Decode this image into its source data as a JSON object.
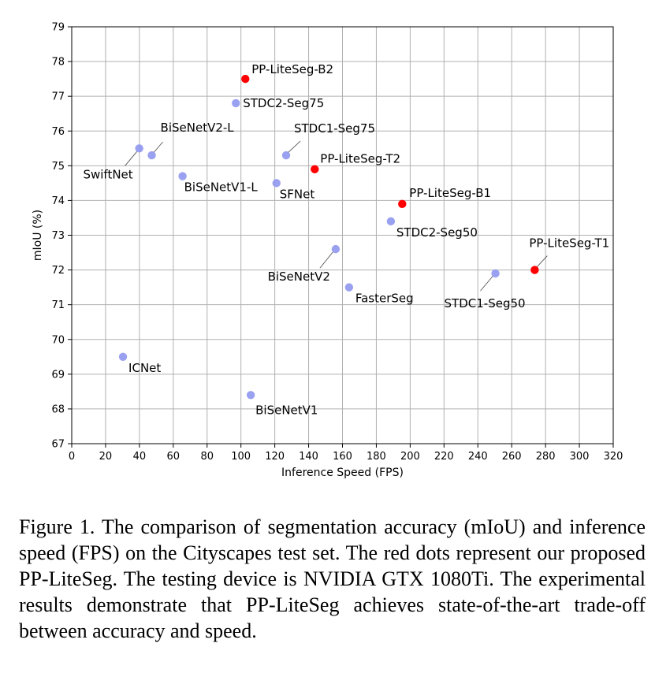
{
  "chart_data": {
    "type": "scatter",
    "title": "",
    "xlabel": "Inference Speed (FPS)",
    "ylabel": "mIoU (%)",
    "xlim": [
      0,
      320
    ],
    "ylim": [
      67,
      79
    ],
    "xticks": [
      0,
      20,
      40,
      60,
      80,
      100,
      120,
      140,
      160,
      180,
      200,
      220,
      240,
      260,
      280,
      300,
      320
    ],
    "yticks": [
      67,
      68,
      69,
      70,
      71,
      72,
      73,
      74,
      75,
      76,
      77,
      78,
      79
    ],
    "grid": true,
    "colors": {
      "baseline": "#8f97ef",
      "proposed": "#ff0000"
    },
    "points": [
      {
        "name": "PP-LiteSeg-B2",
        "x": 102.6,
        "y": 77.5,
        "group": "proposed",
        "label_anchor": "start",
        "label_dx": 8,
        "label_dy": -7
      },
      {
        "name": "STDC2-Seg75",
        "x": 97.0,
        "y": 76.8,
        "group": "baseline",
        "label_anchor": "start",
        "label_dx": 9,
        "label_dy": 5
      },
      {
        "name": "BiSeNetV2-L",
        "x": 47.3,
        "y": 75.3,
        "group": "baseline",
        "label_anchor": "start",
        "label_dx": 11,
        "label_dy": -30,
        "leader": [
          2,
          -3,
          14,
          -17
        ]
      },
      {
        "name": "SwiftNet",
        "x": 39.9,
        "y": 75.5,
        "group": "baseline",
        "label_anchor": "end",
        "label_dx": -8,
        "label_dy": 38,
        "leader": [
          -3,
          4,
          -18,
          22
        ]
      },
      {
        "name": "STDC1-Seg75",
        "x": 126.7,
        "y": 75.3,
        "group": "baseline",
        "label_anchor": "start",
        "label_dx": 10,
        "label_dy": -29,
        "leader": [
          2,
          -3,
          18,
          -18
        ]
      },
      {
        "name": "PP-LiteSeg-T2",
        "x": 143.6,
        "y": 74.9,
        "group": "proposed",
        "label_anchor": "start",
        "label_dx": 7,
        "label_dy": -8
      },
      {
        "name": "BiSeNetV1-L",
        "x": 65.5,
        "y": 74.7,
        "group": "baseline",
        "label_anchor": "start",
        "label_dx": 2,
        "label_dy": 19
      },
      {
        "name": "SFNet",
        "x": 121.0,
        "y": 74.5,
        "group": "baseline",
        "label_anchor": "start",
        "label_dx": 4,
        "label_dy": 19
      },
      {
        "name": "PP-LiteSeg-B1",
        "x": 195.3,
        "y": 73.9,
        "group": "proposed",
        "label_anchor": "start",
        "label_dx": 9,
        "label_dy": -9
      },
      {
        "name": "STDC2-Seg50",
        "x": 188.6,
        "y": 73.4,
        "group": "baseline",
        "label_anchor": "start",
        "label_dx": 7,
        "label_dy": 19
      },
      {
        "name": "BiSeNetV2",
        "x": 156.0,
        "y": 72.6,
        "group": "baseline",
        "label_anchor": "end",
        "label_dx": -7,
        "label_dy": 40,
        "leader": [
          -3,
          3,
          -20,
          24
        ]
      },
      {
        "name": "PP-LiteSeg-T1",
        "x": 273.6,
        "y": 72.0,
        "group": "proposed",
        "label_anchor": "start",
        "label_dx": -7,
        "label_dy": -29,
        "leader": [
          2,
          -3,
          16,
          -18
        ]
      },
      {
        "name": "STDC1-Seg50",
        "x": 250.4,
        "y": 71.9,
        "group": "baseline",
        "label_anchor": "end",
        "label_dx": 38,
        "label_dy": 43,
        "leader": [
          -3,
          3,
          -19,
          22
        ]
      },
      {
        "name": "FasterSeg",
        "x": 163.9,
        "y": 71.5,
        "group": "baseline",
        "label_anchor": "start",
        "label_dx": 8,
        "label_dy": 19
      },
      {
        "name": "ICNet",
        "x": 30.3,
        "y": 69.5,
        "group": "baseline",
        "label_anchor": "start",
        "label_dx": 7,
        "label_dy": 19
      },
      {
        "name": "BiSeNetV1",
        "x": 105.8,
        "y": 68.4,
        "group": "baseline",
        "label_anchor": "start",
        "label_dx": 6,
        "label_dy": 24
      }
    ]
  },
  "caption": "Figure 1. The comparison of segmentation accuracy (mIoU) and inference speed (FPS) on the Cityscapes test set. The red dots represent our proposed PP-LiteSeg. The testing device is NVIDIA GTX 1080Ti. The experimental results demonstrate that PP-LiteSeg achieves state-of-the-art trade-off between accuracy and speed."
}
